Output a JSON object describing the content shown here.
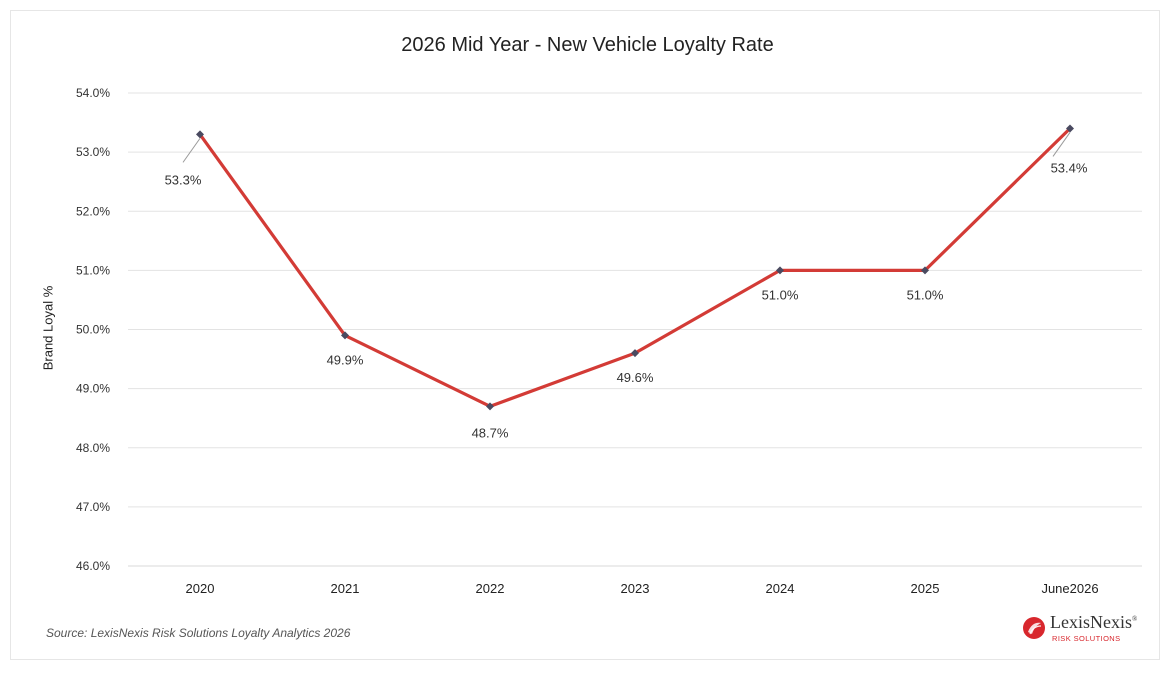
{
  "chart_data": {
    "type": "line",
    "title": "2026 Mid Year - New Vehicle Loyalty Rate",
    "xlabel": "",
    "ylabel": "Brand Loyal %",
    "categories": [
      "2020",
      "2021",
      "2022",
      "2023",
      "2024",
      "2025",
      "June2026"
    ],
    "series": [
      {
        "values": [
          53.3,
          49.9,
          48.7,
          49.6,
          51.0,
          51.0,
          53.4
        ],
        "data_labels": [
          "53.3%",
          "49.9%",
          "48.7%",
          "49.6%",
          "51.0%",
          "51.0%",
          "53.4%"
        ],
        "color": "#d33b36",
        "marker_color": "#4a4a60"
      }
    ],
    "ylim": [
      46.0,
      54.0
    ],
    "yticks": [
      "46.0%",
      "47.0%",
      "48.0%",
      "49.0%",
      "50.0%",
      "51.0%",
      "52.0%",
      "53.0%",
      "54.0%"
    ],
    "grid": true,
    "legend": "none"
  },
  "source": "Source:  LexisNexis Risk Solutions Loyalty Analytics 2026",
  "logo": {
    "name": "LexisNexis",
    "trademark": "®",
    "subtitle": "RISK SOLUTIONS",
    "brand_color": "#d8272d"
  }
}
